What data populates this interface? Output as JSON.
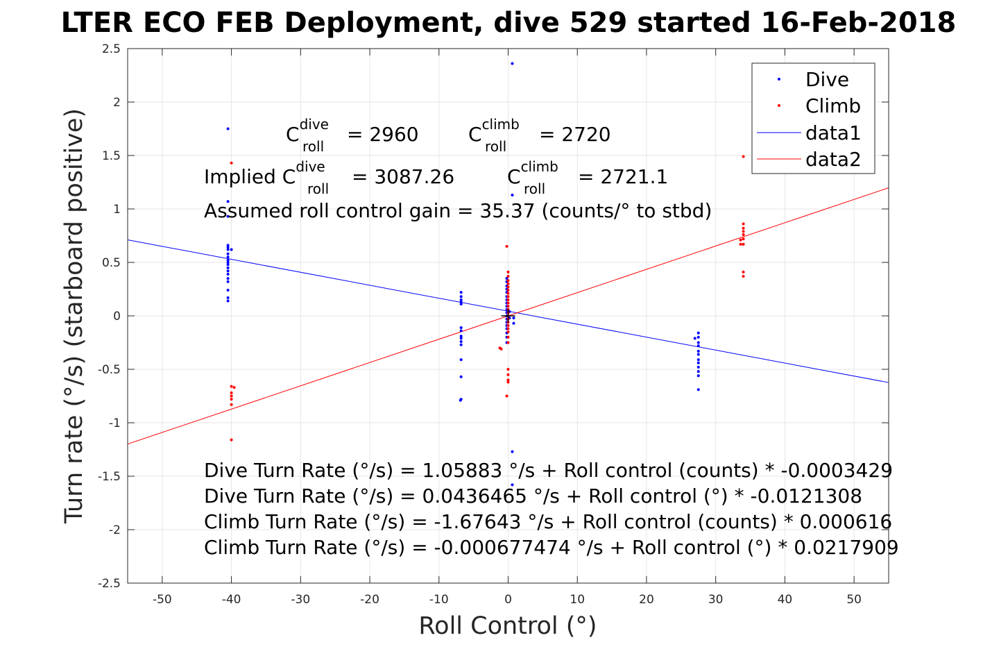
{
  "chart_data": {
    "type": "scatter",
    "title": "LTER ECO FEB Deployment, dive 529 started 16-Feb-2018",
    "xlabel": "Roll Control (°)",
    "ylabel": "Turn rate (°/s) (starboard positive)",
    "xlim": [
      -55,
      55
    ],
    "ylim": [
      -2.5,
      2.5
    ],
    "xticks": [
      -50,
      -40,
      -30,
      -20,
      -10,
      0,
      10,
      20,
      30,
      40,
      50
    ],
    "yticks": [
      2.5,
      2,
      1.5,
      1,
      0.5,
      0,
      -0.5,
      -1,
      -1.5,
      -2,
      -2.5
    ],
    "xtick_labels": [
      "-50",
      "-40",
      "-30",
      "-20",
      "-10",
      "0",
      "10",
      "20",
      "30",
      "40",
      "50"
    ],
    "ytick_labels": [
      "2.5",
      "2",
      "1.5",
      "1",
      "0.5",
      "0",
      "-0.5",
      "-1",
      "-1.5",
      "-2",
      "-2.5"
    ],
    "grid": true,
    "legend_position": "top-right",
    "colors": {
      "dive": "#0000ff",
      "climb": "#ff0000",
      "axes": "#262626",
      "grid": "#e6e6e6"
    },
    "series": [
      {
        "name": "Dive",
        "kind": "points",
        "color": "#0000ff",
        "points": [
          [
            -40.5,
            1.75
          ],
          [
            -40.5,
            1.07
          ],
          [
            -40.5,
            0.93
          ],
          [
            -40.5,
            0.66
          ],
          [
            -40.5,
            0.64
          ],
          [
            -40.5,
            0.62
          ],
          [
            -40.5,
            0.58
          ],
          [
            -40.5,
            0.55
          ],
          [
            -40.5,
            0.52
          ],
          [
            -40.5,
            0.5
          ],
          [
            -40.5,
            0.48
          ],
          [
            -40.5,
            0.45
          ],
          [
            -40.5,
            0.42
          ],
          [
            -40.5,
            0.39
          ],
          [
            -40.5,
            0.35
          ],
          [
            -40.5,
            0.32
          ],
          [
            -40.5,
            0.24
          ],
          [
            -40.5,
            0.17
          ],
          [
            -40.5,
            0.14
          ],
          [
            -40.0,
            0.62
          ],
          [
            -6.8,
            0.22
          ],
          [
            -6.8,
            0.18
          ],
          [
            -6.8,
            0.15
          ],
          [
            -6.8,
            0.13
          ],
          [
            -6.8,
            0.11
          ],
          [
            -6.8,
            -0.11
          ],
          [
            -6.8,
            -0.14
          ],
          [
            -6.8,
            -0.19
          ],
          [
            -6.8,
            -0.21
          ],
          [
            -6.8,
            -0.24
          ],
          [
            -6.8,
            -0.27
          ],
          [
            -6.8,
            -0.41
          ],
          [
            -6.8,
            -0.57
          ],
          [
            -6.8,
            -0.78
          ],
          [
            -6.9,
            -0.79
          ],
          [
            0.6,
            2.36
          ],
          [
            0.6,
            1.13
          ],
          [
            0.6,
            -1.27
          ],
          [
            0.6,
            -1.58
          ],
          [
            -0.2,
            0.35
          ],
          [
            -0.2,
            0.32
          ],
          [
            -0.2,
            0.28
          ],
          [
            -0.2,
            0.25
          ],
          [
            -0.2,
            0.22
          ],
          [
            -0.2,
            0.18
          ],
          [
            -0.2,
            0.15
          ],
          [
            -0.2,
            0.12
          ],
          [
            -0.2,
            0.09
          ],
          [
            -0.2,
            0.06
          ],
          [
            -0.2,
            0.03
          ],
          [
            -0.2,
            0.0
          ],
          [
            -0.2,
            -0.03
          ],
          [
            -0.2,
            -0.06
          ],
          [
            -0.2,
            -0.09
          ],
          [
            -0.2,
            -0.12
          ],
          [
            -0.2,
            -0.16
          ],
          [
            -0.2,
            -0.2
          ],
          [
            -0.2,
            -0.25
          ],
          [
            0.2,
            0.04
          ],
          [
            0.2,
            -0.02
          ],
          [
            0.8,
            -0.02
          ],
          [
            0.8,
            -0.07
          ],
          [
            27.5,
            -0.16
          ],
          [
            27.5,
            -0.2
          ],
          [
            27.5,
            -0.25
          ],
          [
            27.5,
            -0.28
          ],
          [
            27.5,
            -0.33
          ],
          [
            27.5,
            -0.36
          ],
          [
            27.5,
            -0.41
          ],
          [
            27.5,
            -0.44
          ],
          [
            27.5,
            -0.48
          ],
          [
            27.5,
            -0.52
          ],
          [
            27.5,
            -0.56
          ],
          [
            27.5,
            -0.69
          ],
          [
            27.0,
            -0.21
          ]
        ]
      },
      {
        "name": "Climb",
        "kind": "points",
        "color": "#ff0000",
        "points": [
          [
            -40.0,
            1.43
          ],
          [
            -40.0,
            -0.66
          ],
          [
            -39.6,
            -0.67
          ],
          [
            -40.0,
            -0.72
          ],
          [
            -40.0,
            -0.75
          ],
          [
            -40.0,
            -0.78
          ],
          [
            -40.0,
            -0.83
          ],
          [
            -40.0,
            -1.16
          ],
          [
            -0.2,
            0.65
          ],
          [
            0.0,
            0.41
          ],
          [
            0.0,
            0.37
          ],
          [
            0.0,
            0.33
          ],
          [
            0.0,
            0.3
          ],
          [
            0.0,
            0.27
          ],
          [
            0.0,
            0.24
          ],
          [
            0.0,
            0.21
          ],
          [
            0.0,
            0.18
          ],
          [
            0.0,
            0.15
          ],
          [
            0.0,
            0.12
          ],
          [
            0.0,
            0.09
          ],
          [
            0.0,
            0.06
          ],
          [
            0.0,
            0.03
          ],
          [
            0.0,
            0.0
          ],
          [
            0.0,
            -0.03
          ],
          [
            0.0,
            -0.06
          ],
          [
            0.0,
            -0.09
          ],
          [
            0.0,
            -0.12
          ],
          [
            0.0,
            -0.15
          ],
          [
            0.0,
            -0.2
          ],
          [
            0.0,
            -0.25
          ],
          [
            0.0,
            -0.5
          ],
          [
            0.0,
            -0.55
          ],
          [
            0.0,
            -0.6
          ],
          [
            0.0,
            -0.62
          ],
          [
            -0.2,
            -0.75
          ],
          [
            -1.2,
            -0.3
          ],
          [
            -1.0,
            -0.31
          ],
          [
            34.0,
            1.49
          ],
          [
            34.0,
            0.86
          ],
          [
            34.0,
            0.82
          ],
          [
            34.0,
            0.79
          ],
          [
            34.0,
            0.76
          ],
          [
            34.0,
            0.72
          ],
          [
            33.6,
            0.71
          ],
          [
            33.6,
            0.67
          ],
          [
            34.0,
            0.67
          ],
          [
            34.0,
            0.41
          ],
          [
            34.0,
            0.37
          ]
        ]
      },
      {
        "name": "data1",
        "kind": "line",
        "color": "#0000ff",
        "x": [
          -55,
          55
        ],
        "y": [
          0.7108,
          -0.6238
        ]
      },
      {
        "name": "data2",
        "kind": "line",
        "color": "#ff0000",
        "x": [
          -55,
          55
        ],
        "y": [
          -1.1992,
          1.1979
        ]
      }
    ],
    "center_marker": {
      "x": 0,
      "y": 0,
      "symbol": "+"
    },
    "annotations": {
      "c_roll_dive": {
        "prefix": "C",
        "sup": "dive",
        "sub": "roll",
        "value": "= 2960"
      },
      "c_roll_climb": {
        "prefix": "C",
        "sup": "climb",
        "sub": "roll",
        "value": "= 2720"
      },
      "implied_dive": {
        "prefix": "Implied C",
        "sup": "dive",
        "sub": "roll",
        "value": "= 3087.26"
      },
      "implied_climb": {
        "prefix": "C",
        "sup": "climb",
        "sub": "roll",
        "value": "= 2721.1"
      },
      "gain": "Assumed roll control gain = 35.37 (counts/° to stbd)",
      "equations": [
        "Dive Turn Rate (°/s) = 1.05883 °/s + Roll control (counts) * -0.0003429",
        "Dive Turn Rate (°/s) = 0.0436465 °/s + Roll control (°) * -0.0121308",
        "Climb Turn Rate (°/s) = -1.67643 °/s + Roll control (counts) * 0.000616",
        "Climb Turn Rate (°/s) = -0.000677474 °/s + Roll control (°) * 0.0217909"
      ]
    }
  }
}
